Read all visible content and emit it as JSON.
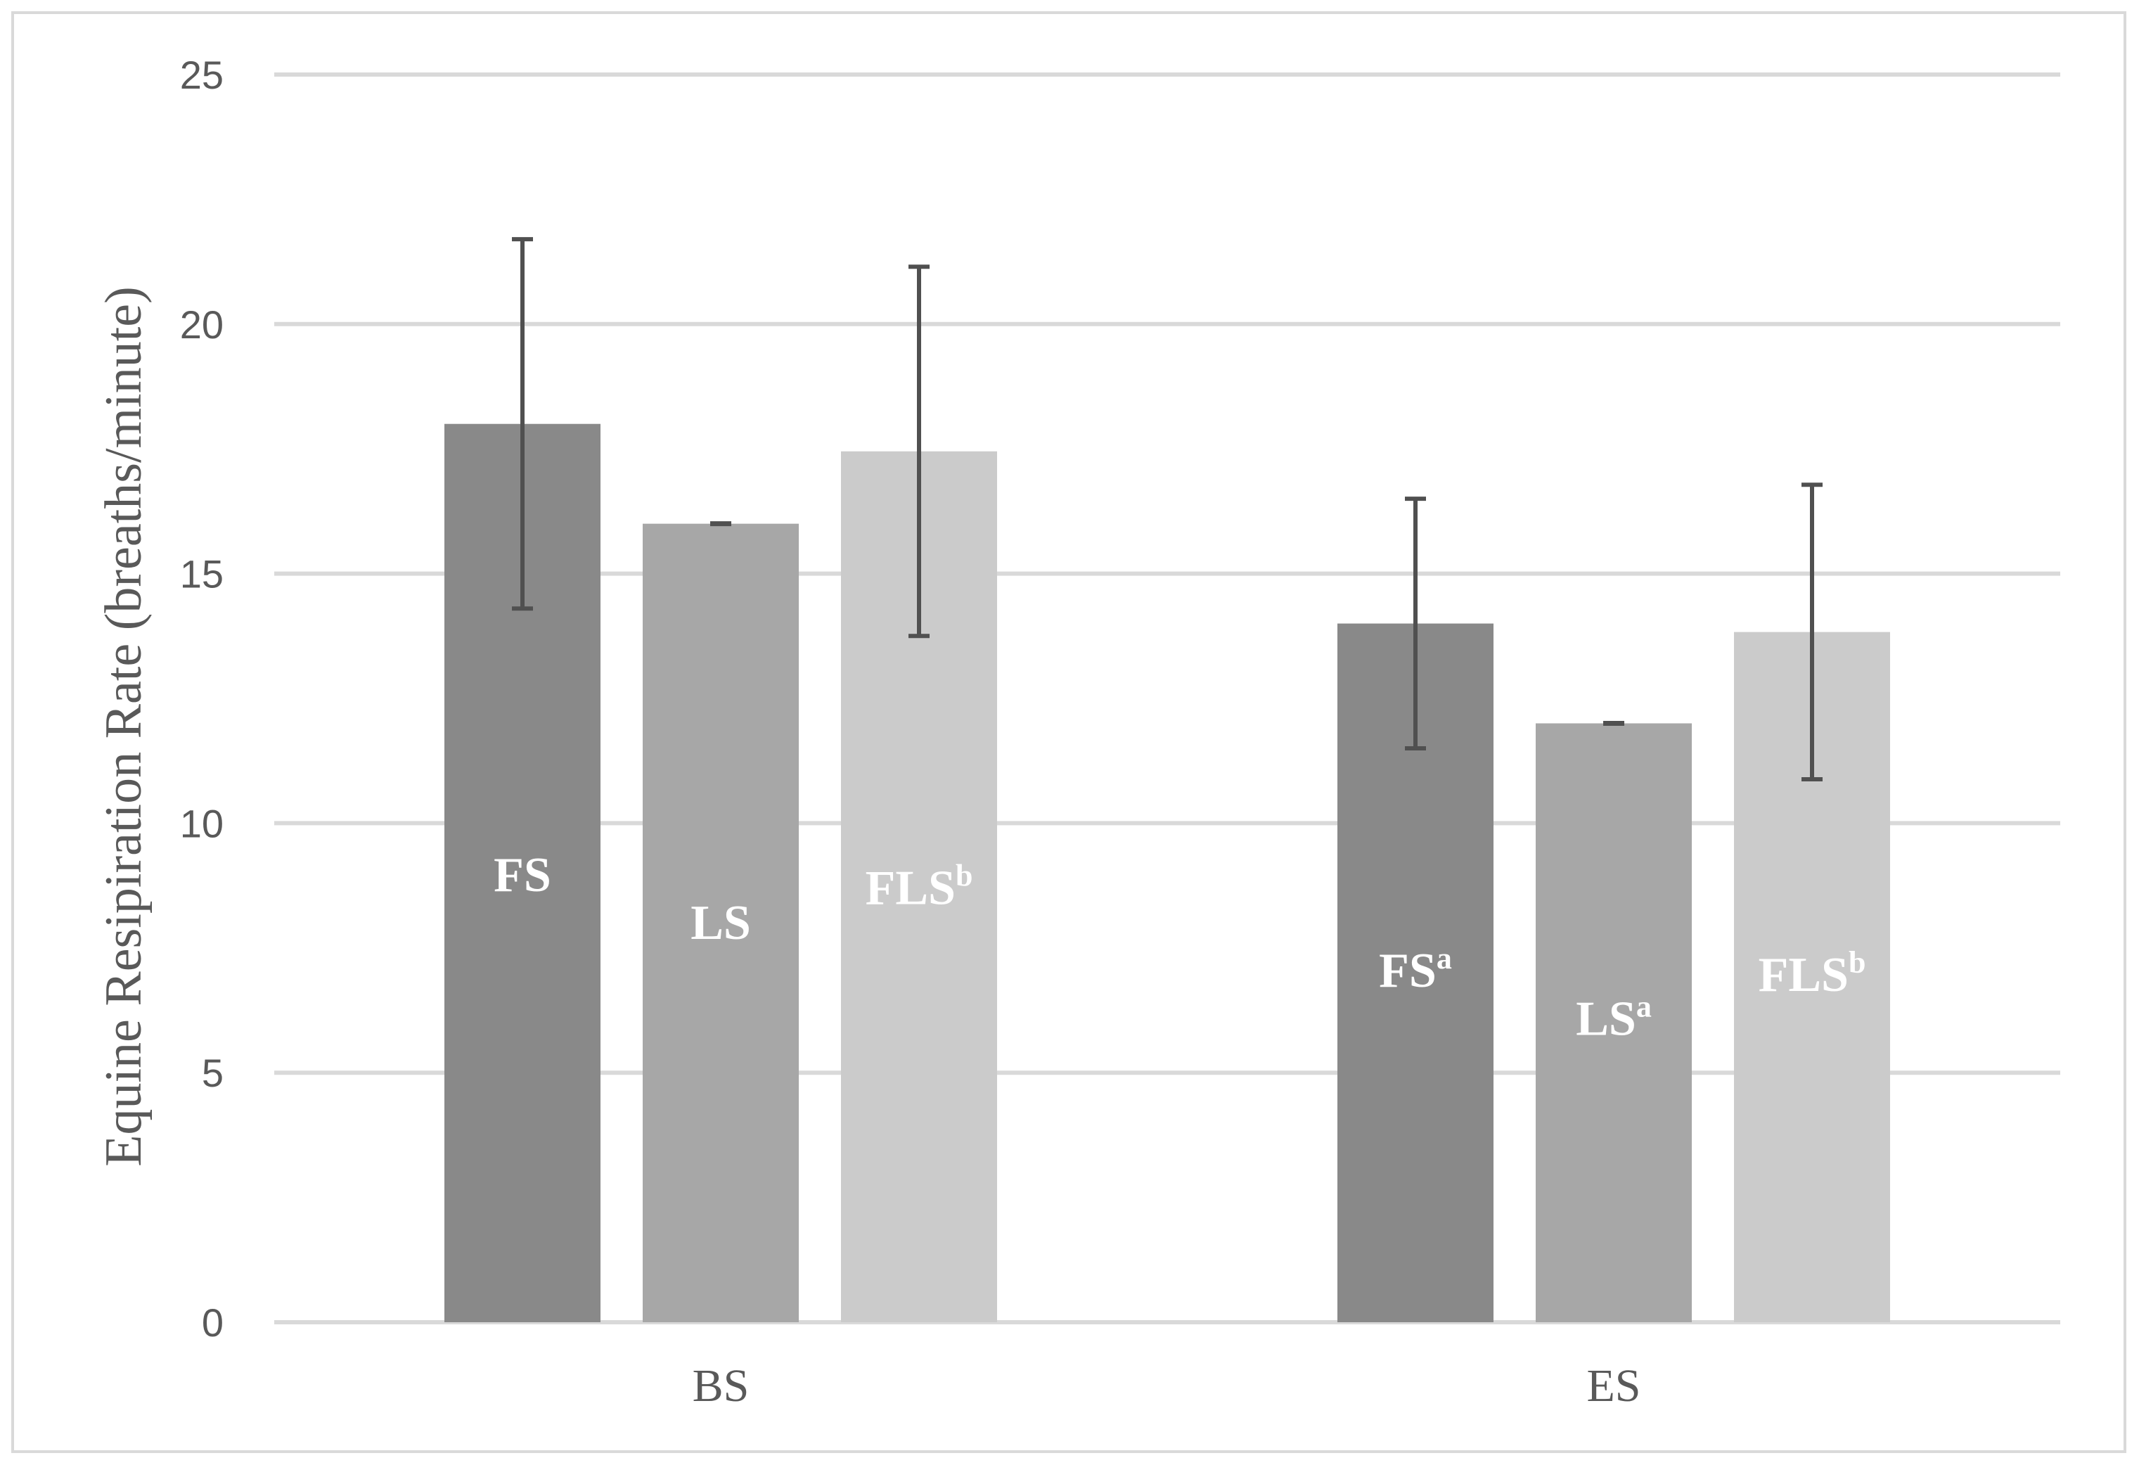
{
  "chart_data": {
    "type": "bar",
    "ylabel": "Equine Resipiration Rate (breaths/minute)",
    "ylim": [
      0,
      25
    ],
    "yticks": [
      0,
      5,
      10,
      15,
      20,
      25
    ],
    "grid": true,
    "categories": [
      "BS",
      "ES"
    ],
    "series": [
      {
        "color": "#898989",
        "values": [
          18.0,
          14.0
        ],
        "errors": [
          3.7,
          2.5
        ],
        "labels": [
          {
            "text": "FS",
            "sup": ""
          },
          {
            "text": "FS",
            "sup": "a"
          }
        ]
      },
      {
        "color": "#a7a7a7",
        "values": [
          16.0,
          12.0
        ],
        "errors": [
          0.0,
          0.0
        ],
        "labels": [
          {
            "text": "LS",
            "sup": ""
          },
          {
            "text": "LS",
            "sup": "a"
          }
        ]
      },
      {
        "color": "#cbcbcb",
        "values": [
          17.45,
          13.83
        ],
        "errors": [
          3.7,
          2.95
        ],
        "labels": [
          {
            "text": "FLS",
            "sup": "b"
          },
          {
            "text": "FLS",
            "sup": "b"
          }
        ]
      }
    ],
    "gridline_color": "#d9d9d9",
    "error_bar_color": "#505050",
    "bar_label_color": "#ffffff"
  }
}
